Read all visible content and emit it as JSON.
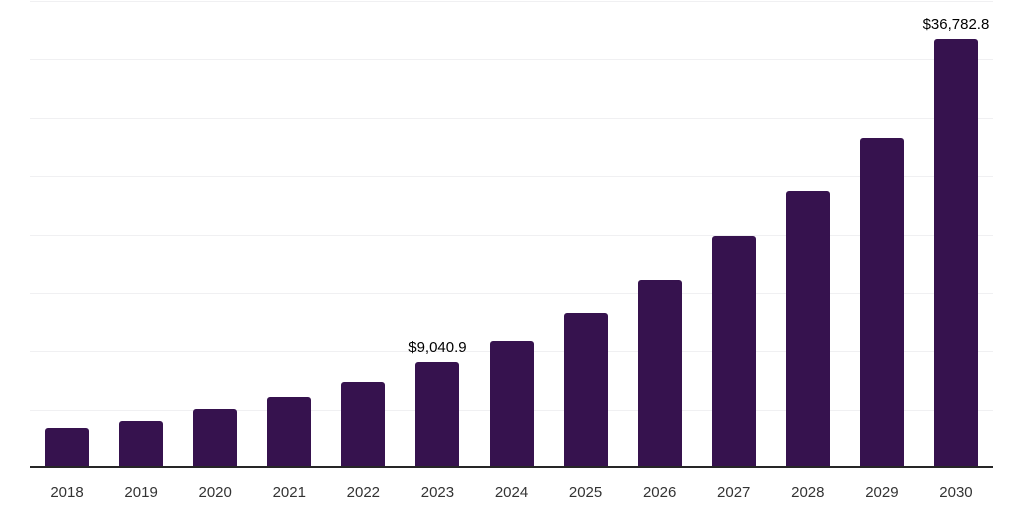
{
  "chart_data": {
    "type": "bar",
    "title": "",
    "xlabel": "",
    "ylabel": "",
    "categories": [
      "2018",
      "2019",
      "2020",
      "2021",
      "2022",
      "2023",
      "2024",
      "2025",
      "2026",
      "2027",
      "2028",
      "2029",
      "2030"
    ],
    "values": [
      3400,
      4050,
      5050,
      6100,
      7400,
      9040.9,
      10850,
      13250,
      16100,
      19850,
      23750,
      28300,
      36782.8
    ],
    "value_labels": {
      "2023": "$9,040.9",
      "2030": "$36,782.8"
    },
    "ylim": [
      0,
      40000
    ],
    "grid_step": 5000,
    "grid": true,
    "legend": "none",
    "colors": {
      "bar_fill": "#36124E",
      "axis_line": "#262626",
      "gridline": "#f0f0f2",
      "value_label_text": "#000000",
      "tick_label_text": "#333333",
      "background": "#ffffff"
    }
  }
}
